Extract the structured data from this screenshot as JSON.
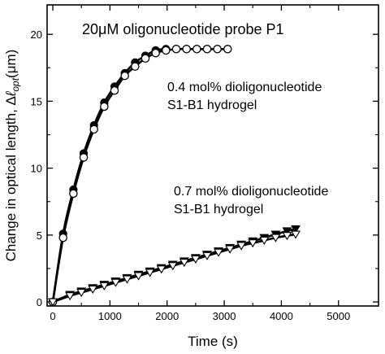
{
  "chart_data": {
    "type": "scatter",
    "title": "20μM oligonucleotide probe P1",
    "xlabel": "Time (s)",
    "ylabel": {
      "prefix": "Change in optical length, Δ",
      "italic": "ℓ",
      "subscript": "opt",
      "suffix": "(μm)"
    },
    "xlim": [
      -100,
      5700
    ],
    "ylim": [
      -0.3,
      22.2
    ],
    "xticks": [
      0,
      1000,
      2000,
      3000,
      4000,
      5000
    ],
    "yticks": [
      0,
      5,
      10,
      15,
      20
    ],
    "grid": false,
    "annotations": [
      {
        "lines": [
          "0.4 mol% dioligonucleotide",
          "S1-B1 hydrogel"
        ]
      },
      {
        "lines": [
          "0.7 mol% dioligonucleotide",
          "S1-B1 hydrogel"
        ]
      }
    ],
    "series": [
      {
        "marker": "filled-circle",
        "x": [
          0,
          180,
          360,
          540,
          720,
          900,
          1080,
          1260,
          1440,
          1620,
          1800,
          1980
        ],
        "y": [
          0,
          5.1,
          8.4,
          11.1,
          13.2,
          14.9,
          16.1,
          17.1,
          17.9,
          18.4,
          18.8,
          18.9
        ]
      },
      {
        "marker": "open-circle",
        "x": [
          0,
          180,
          360,
          540,
          720,
          900,
          1080,
          1260,
          1440,
          1620,
          1800,
          1980,
          2160,
          2340,
          2520,
          2700,
          2880,
          3060
        ],
        "y": [
          0,
          4.8,
          8.1,
          10.8,
          12.9,
          14.6,
          15.8,
          16.9,
          17.6,
          18.2,
          18.6,
          18.8,
          18.9,
          18.9,
          18.9,
          18.9,
          18.9,
          18.9
        ]
      },
      {
        "marker": "filled-triangle-down",
        "x": [
          0,
          300,
          500,
          700,
          900,
          1100,
          1300,
          1500,
          1700,
          1900,
          2100,
          2300,
          2500,
          2700,
          2900,
          3100,
          3300,
          3500,
          3700,
          3900,
          4100,
          4250
        ],
        "y": [
          0,
          0.55,
          0.8,
          1.05,
          1.3,
          1.55,
          1.8,
          2.05,
          2.3,
          2.55,
          2.8,
          3.05,
          3.3,
          3.55,
          3.8,
          4.05,
          4.3,
          4.55,
          4.8,
          5.05,
          5.3,
          5.45
        ]
      },
      {
        "marker": "open-triangle-down",
        "x": [
          0,
          300,
          500,
          700,
          900,
          1100,
          1300,
          1500,
          1700,
          1900,
          2100,
          2300,
          2500,
          2700,
          2900,
          3100,
          3300,
          3500,
          3700,
          3900,
          4100,
          4250
        ],
        "y": [
          0,
          0.45,
          0.7,
          0.95,
          1.2,
          1.45,
          1.7,
          1.95,
          2.2,
          2.45,
          2.7,
          2.95,
          3.2,
          3.45,
          3.7,
          3.95,
          4.2,
          4.4,
          4.6,
          4.8,
          4.95,
          5.05
        ]
      }
    ]
  }
}
